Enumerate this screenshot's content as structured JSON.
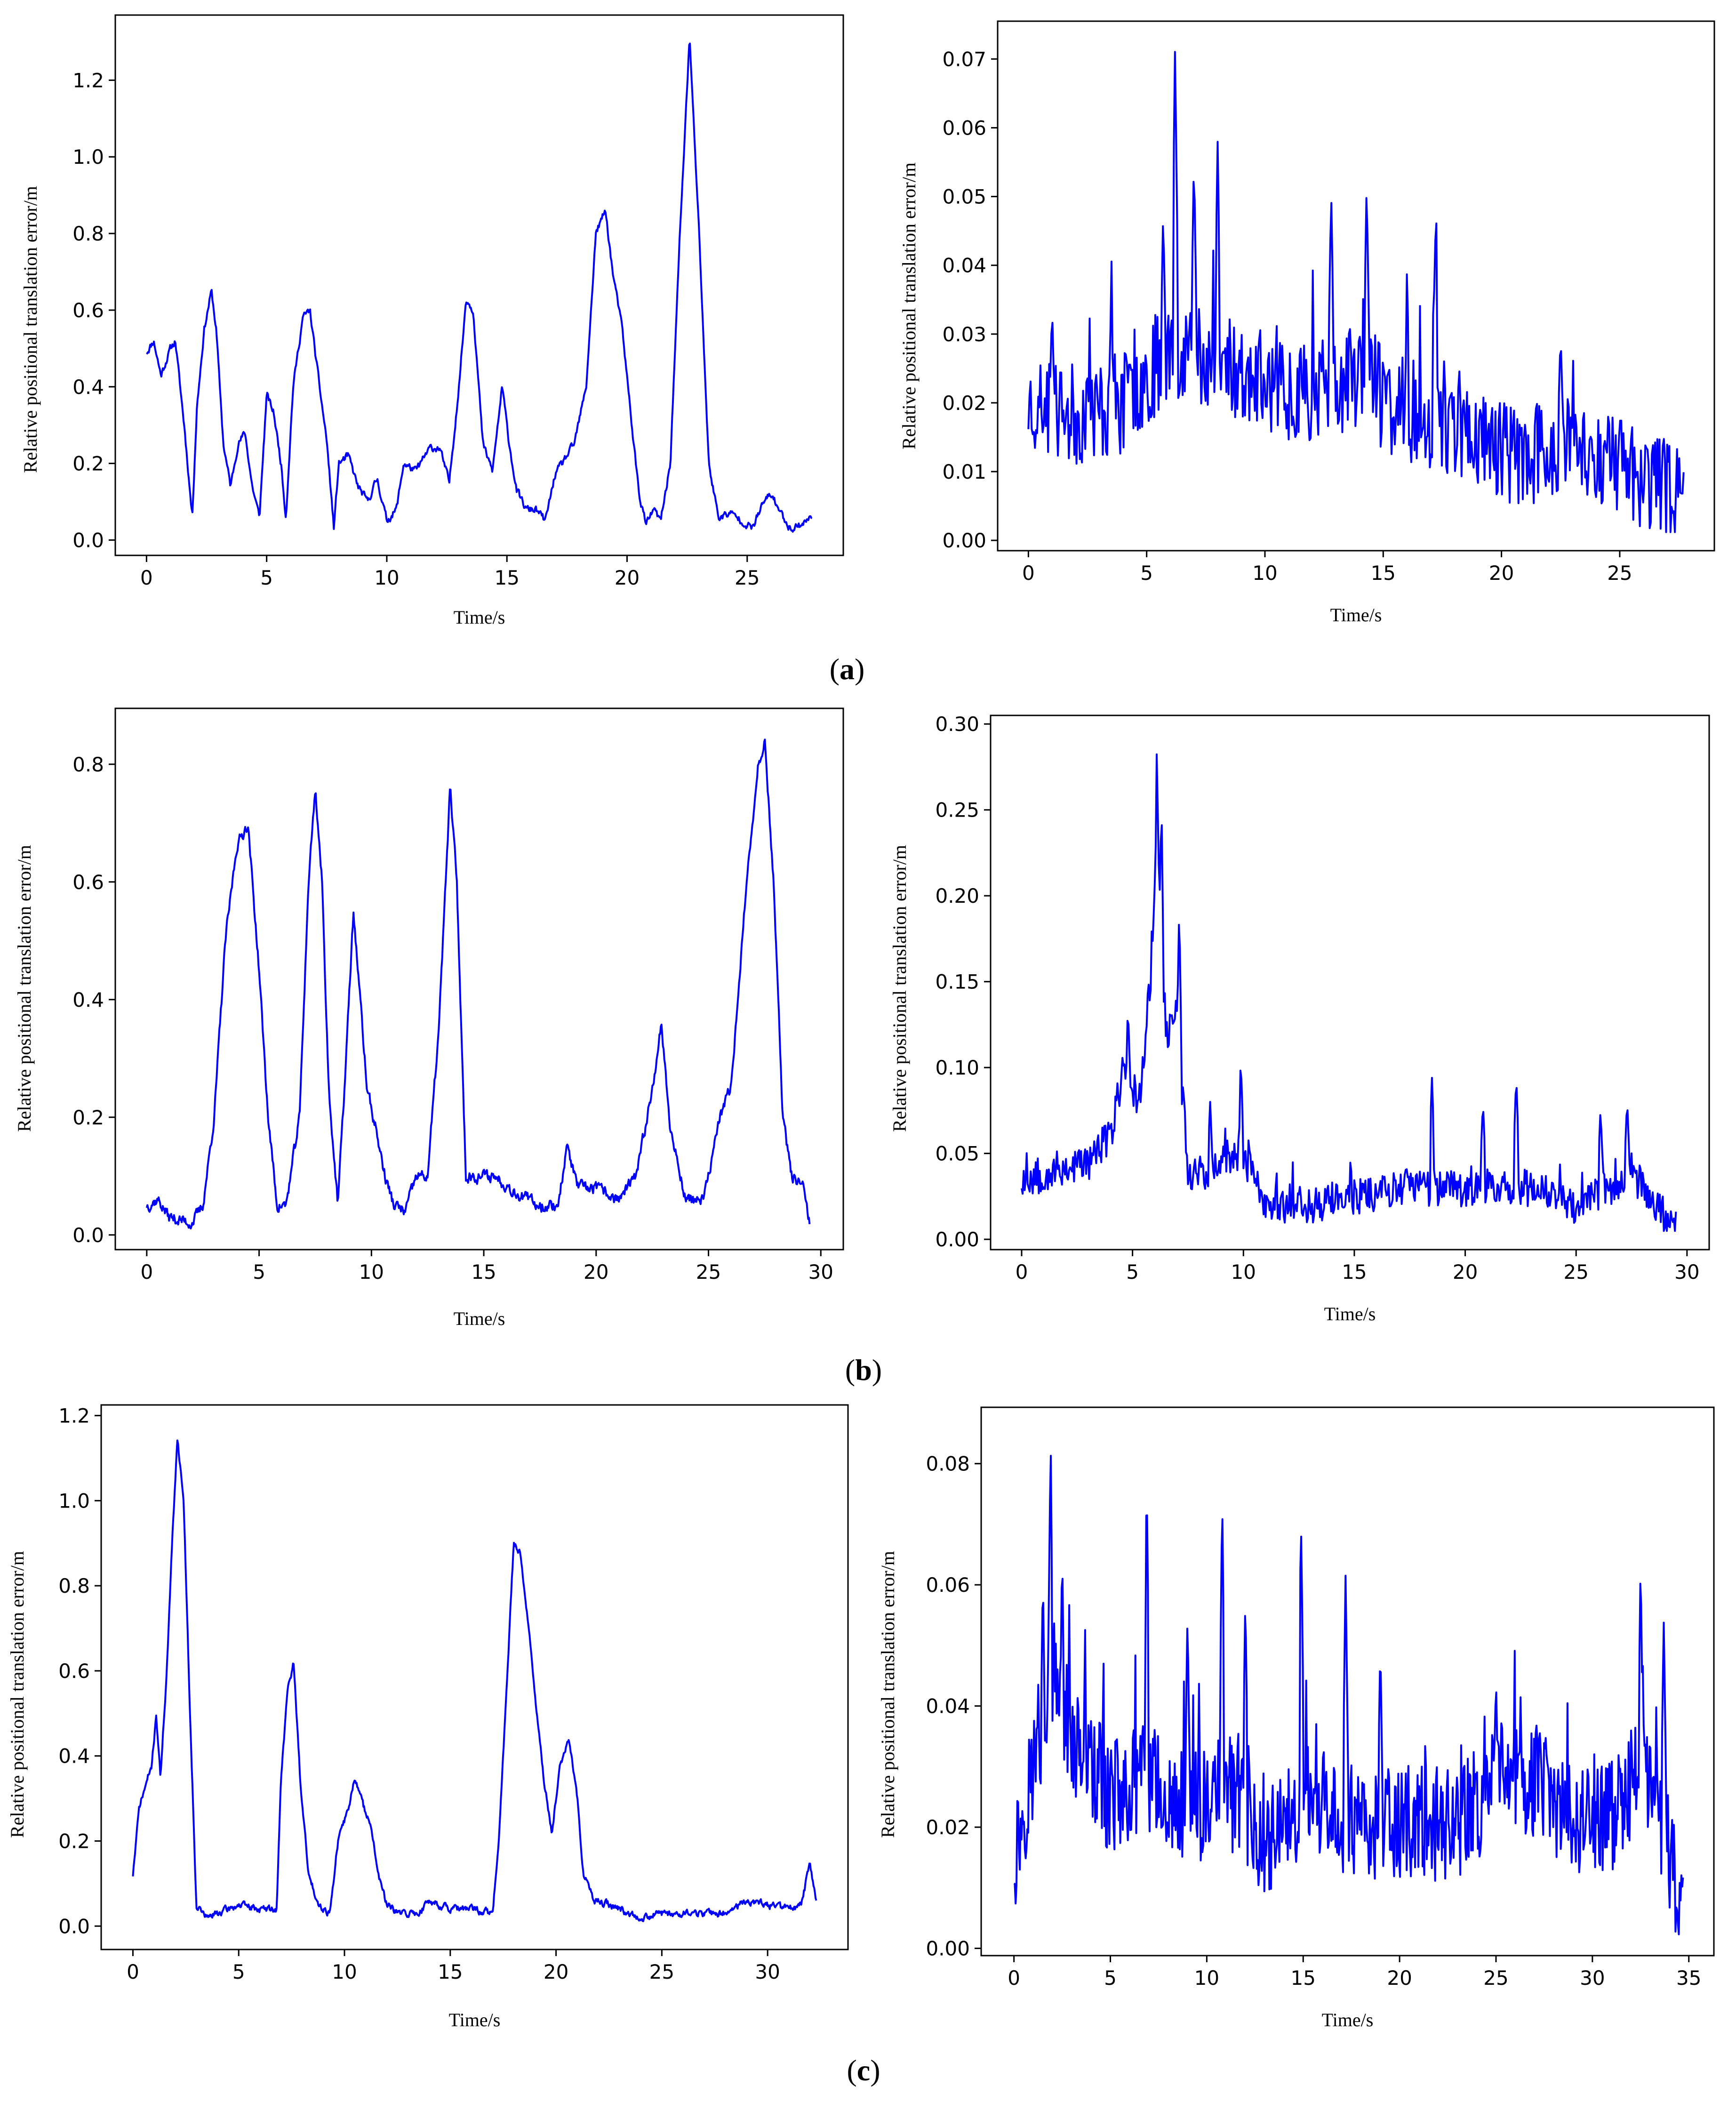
{
  "panels": [
    {
      "letter": "a"
    },
    {
      "letter": "b"
    },
    {
      "letter": "c"
    }
  ],
  "line_color": "#0000ff",
  "chart_data": [
    {
      "id": "a-left",
      "type": "line",
      "panel": "a",
      "position": "left",
      "xlabel": "Time/s",
      "ylabel": "Relative positional translation error/m",
      "xlim": [
        -1.3,
        29.0
      ],
      "ylim": [
        -0.04,
        1.37
      ],
      "xticks": [
        0,
        5,
        10,
        15,
        20,
        25
      ],
      "yticks": [
        0.0,
        0.2,
        0.4,
        0.6,
        0.8,
        1.0,
        1.2
      ],
      "x_range": [
        0,
        27.7
      ],
      "n_points": 900,
      "noise": 0.018,
      "seed": 11,
      "anchors": [
        [
          0,
          0.49
        ],
        [
          0.3,
          0.52
        ],
        [
          0.6,
          0.43
        ],
        [
          1.0,
          0.5
        ],
        [
          1.2,
          0.52
        ],
        [
          1.4,
          0.4
        ],
        [
          1.6,
          0.28
        ],
        [
          1.9,
          0.06
        ],
        [
          2.1,
          0.35
        ],
        [
          2.4,
          0.55
        ],
        [
          2.7,
          0.65
        ],
        [
          2.9,
          0.55
        ],
        [
          3.2,
          0.25
        ],
        [
          3.5,
          0.14
        ],
        [
          3.8,
          0.25
        ],
        [
          4.1,
          0.28
        ],
        [
          4.4,
          0.14
        ],
        [
          4.7,
          0.06
        ],
        [
          5.0,
          0.38
        ],
        [
          5.3,
          0.33
        ],
        [
          5.6,
          0.2
        ],
        [
          5.8,
          0.06
        ],
        [
          6.1,
          0.4
        ],
        [
          6.5,
          0.58
        ],
        [
          6.8,
          0.6
        ],
        [
          7.2,
          0.4
        ],
        [
          7.5,
          0.26
        ],
        [
          7.8,
          0.03
        ],
        [
          8.0,
          0.2
        ],
        [
          8.4,
          0.22
        ],
        [
          8.8,
          0.14
        ],
        [
          9.2,
          0.1
        ],
        [
          9.6,
          0.16
        ],
        [
          10.0,
          0.05
        ],
        [
          10.4,
          0.08
        ],
        [
          10.7,
          0.2
        ],
        [
          11.2,
          0.18
        ],
        [
          11.8,
          0.24
        ],
        [
          12.2,
          0.24
        ],
        [
          12.6,
          0.15
        ],
        [
          13.0,
          0.4
        ],
        [
          13.3,
          0.63
        ],
        [
          13.6,
          0.6
        ],
        [
          14.0,
          0.25
        ],
        [
          14.4,
          0.18
        ],
        [
          14.8,
          0.4
        ],
        [
          15.1,
          0.25
        ],
        [
          15.4,
          0.13
        ],
        [
          15.8,
          0.08
        ],
        [
          16.2,
          0.08
        ],
        [
          16.6,
          0.05
        ],
        [
          17.0,
          0.17
        ],
        [
          17.3,
          0.2
        ],
        [
          17.8,
          0.25
        ],
        [
          18.3,
          0.4
        ],
        [
          18.7,
          0.8
        ],
        [
          19.1,
          0.86
        ],
        [
          19.4,
          0.7
        ],
        [
          19.8,
          0.55
        ],
        [
          20.2,
          0.3
        ],
        [
          20.5,
          0.12
        ],
        [
          20.8,
          0.04
        ],
        [
          21.1,
          0.08
        ],
        [
          21.4,
          0.05
        ],
        [
          21.8,
          0.2
        ],
        [
          22.2,
          0.8
        ],
        [
          22.6,
          1.31
        ],
        [
          23.0,
          0.8
        ],
        [
          23.4,
          0.2
        ],
        [
          23.8,
          0.06
        ],
        [
          24.3,
          0.07
        ],
        [
          24.8,
          0.05
        ],
        [
          25.2,
          0.03
        ],
        [
          25.7,
          0.1
        ],
        [
          26.0,
          0.12
        ],
        [
          26.4,
          0.07
        ],
        [
          26.8,
          0.03
        ],
        [
          27.2,
          0.04
        ],
        [
          27.7,
          0.06
        ]
      ]
    },
    {
      "id": "a-right",
      "type": "line",
      "panel": "a",
      "position": "right",
      "xlabel": "Time/s",
      "ylabel": "Relative positional translation error/m",
      "xlim": [
        -1.3,
        29.0
      ],
      "ylim": [
        -0.0015,
        0.0755
      ],
      "xticks": [
        0,
        5,
        10,
        15,
        20,
        25
      ],
      "yticks": [
        0.0,
        0.01,
        0.02,
        0.03,
        0.04,
        0.05,
        0.06,
        0.07
      ],
      "x_range": [
        0,
        27.7
      ],
      "n_points": 600,
      "noise": 0.0075,
      "seed": 23,
      "spikes": [
        [
          6.2,
          0.072
        ],
        [
          7.0,
          0.056
        ],
        [
          8.0,
          0.058
        ],
        [
          5.7,
          0.048
        ],
        [
          14.3,
          0.052
        ],
        [
          12.8,
          0.051
        ],
        [
          17.2,
          0.044
        ],
        [
          16.0,
          0.032
        ],
        [
          22.5,
          0.03
        ],
        [
          1.0,
          0.034
        ],
        [
          3.5,
          0.035
        ]
      ],
      "anchors": [
        [
          0,
          0.02
        ],
        [
          2.0,
          0.018
        ],
        [
          4.0,
          0.02
        ],
        [
          6.0,
          0.028
        ],
        [
          7.0,
          0.028
        ],
        [
          9.0,
          0.024
        ],
        [
          11.0,
          0.022
        ],
        [
          13.0,
          0.022
        ],
        [
          14.3,
          0.025
        ],
        [
          15.0,
          0.02
        ],
        [
          17.0,
          0.018
        ],
        [
          19.0,
          0.015
        ],
        [
          21.0,
          0.012
        ],
        [
          23.0,
          0.014
        ],
        [
          25.0,
          0.011
        ],
        [
          27.7,
          0.006
        ]
      ]
    },
    {
      "id": "b-left",
      "type": "line",
      "panel": "b",
      "position": "left",
      "xlabel": "Time/s",
      "ylabel": "Relative positional translation error/m",
      "xlim": [
        -1.4,
        31.0
      ],
      "ylim": [
        -0.025,
        0.895
      ],
      "xticks": [
        0,
        5,
        10,
        15,
        20,
        25,
        30
      ],
      "yticks": [
        0.0,
        0.2,
        0.4,
        0.6,
        0.8
      ],
      "x_range": [
        0,
        29.5
      ],
      "n_points": 950,
      "noise": 0.018,
      "seed": 37,
      "anchors": [
        [
          0,
          0.05
        ],
        [
          0.5,
          0.06
        ],
        [
          1.0,
          0.03
        ],
        [
          2.0,
          0.02
        ],
        [
          2.5,
          0.05
        ],
        [
          3.0,
          0.2
        ],
        [
          3.5,
          0.5
        ],
        [
          4.0,
          0.66
        ],
        [
          4.5,
          0.7
        ],
        [
          5.0,
          0.45
        ],
        [
          5.4,
          0.2
        ],
        [
          5.8,
          0.05
        ],
        [
          6.2,
          0.05
        ],
        [
          6.8,
          0.2
        ],
        [
          7.2,
          0.6
        ],
        [
          7.5,
          0.76
        ],
        [
          7.8,
          0.6
        ],
        [
          8.1,
          0.25
        ],
        [
          8.5,
          0.05
        ],
        [
          8.8,
          0.25
        ],
        [
          9.2,
          0.55
        ],
        [
          9.5,
          0.4
        ],
        [
          9.8,
          0.25
        ],
        [
          10.2,
          0.18
        ],
        [
          10.6,
          0.1
        ],
        [
          11.0,
          0.05
        ],
        [
          11.5,
          0.04
        ],
        [
          12.0,
          0.1
        ],
        [
          12.5,
          0.1
        ],
        [
          13.0,
          0.35
        ],
        [
          13.5,
          0.76
        ],
        [
          13.8,
          0.6
        ],
        [
          14.2,
          0.1
        ],
        [
          14.8,
          0.1
        ],
        [
          15.5,
          0.1
        ],
        [
          16.5,
          0.07
        ],
        [
          17.5,
          0.05
        ],
        [
          18.3,
          0.05
        ],
        [
          18.7,
          0.15
        ],
        [
          19.2,
          0.08
        ],
        [
          20.0,
          0.08
        ],
        [
          21.0,
          0.06
        ],
        [
          21.8,
          0.1
        ],
        [
          22.5,
          0.25
        ],
        [
          22.9,
          0.36
        ],
        [
          23.3,
          0.18
        ],
        [
          24.0,
          0.06
        ],
        [
          24.8,
          0.06
        ],
        [
          25.5,
          0.2
        ],
        [
          26.0,
          0.25
        ],
        [
          26.6,
          0.55
        ],
        [
          27.2,
          0.8
        ],
        [
          27.5,
          0.84
        ],
        [
          27.9,
          0.6
        ],
        [
          28.3,
          0.2
        ],
        [
          28.7,
          0.1
        ],
        [
          29.2,
          0.08
        ],
        [
          29.5,
          0.02
        ]
      ]
    },
    {
      "id": "b-right",
      "type": "line",
      "panel": "b",
      "position": "right",
      "xlabel": "Time/s",
      "ylabel": "Relative positional translation error/m",
      "xlim": [
        -1.4,
        31.0
      ],
      "ylim": [
        -0.006,
        0.305
      ],
      "xticks": [
        0,
        5,
        10,
        15,
        20,
        25,
        30
      ],
      "yticks": [
        0.0,
        0.05,
        0.1,
        0.15,
        0.2,
        0.25,
        0.3
      ],
      "x_range": [
        0,
        29.5
      ],
      "n_points": 650,
      "noise": 0.011,
      "seed": 53,
      "spikes": [
        [
          6.1,
          0.293
        ],
        [
          6.3,
          0.26
        ],
        [
          7.1,
          0.19
        ],
        [
          4.8,
          0.135
        ],
        [
          9.9,
          0.097
        ],
        [
          18.5,
          0.094
        ],
        [
          22.3,
          0.095
        ],
        [
          27.3,
          0.081
        ],
        [
          26.1,
          0.075
        ],
        [
          20.8,
          0.08
        ],
        [
          8.5,
          0.08
        ]
      ],
      "anchors": [
        [
          0,
          0.035
        ],
        [
          1.5,
          0.04
        ],
        [
          3.0,
          0.045
        ],
        [
          4.0,
          0.06
        ],
        [
          4.6,
          0.1
        ],
        [
          5.3,
          0.08
        ],
        [
          5.8,
          0.15
        ],
        [
          6.1,
          0.24
        ],
        [
          6.5,
          0.12
        ],
        [
          7.0,
          0.13
        ],
        [
          7.5,
          0.04
        ],
        [
          8.5,
          0.04
        ],
        [
          10.0,
          0.05
        ],
        [
          11.0,
          0.02
        ],
        [
          12.0,
          0.02
        ],
        [
          13.0,
          0.02
        ],
        [
          15.0,
          0.025
        ],
        [
          17.0,
          0.03
        ],
        [
          19.0,
          0.03
        ],
        [
          21.0,
          0.03
        ],
        [
          23.0,
          0.03
        ],
        [
          25.0,
          0.02
        ],
        [
          26.5,
          0.03
        ],
        [
          27.5,
          0.04
        ],
        [
          28.5,
          0.02
        ],
        [
          29.5,
          0.008
        ]
      ]
    },
    {
      "id": "c-left",
      "type": "line",
      "panel": "c",
      "position": "left",
      "xlabel": "Time/s",
      "ylabel": "Relative positional translation error/m",
      "xlim": [
        -1.5,
        33.8
      ],
      "ylim": [
        -0.055,
        1.225
      ],
      "xticks": [
        0,
        5,
        10,
        15,
        20,
        25,
        30
      ],
      "yticks": [
        0.0,
        0.2,
        0.4,
        0.6,
        0.8,
        1.0,
        1.2
      ],
      "x_range": [
        0,
        32.3
      ],
      "n_points": 1000,
      "noise": 0.015,
      "seed": 71,
      "anchors": [
        [
          0,
          0.12
        ],
        [
          0.3,
          0.28
        ],
        [
          0.6,
          0.33
        ],
        [
          0.9,
          0.38
        ],
        [
          1.1,
          0.5
        ],
        [
          1.3,
          0.35
        ],
        [
          1.6,
          0.6
        ],
        [
          1.9,
          0.95
        ],
        [
          2.1,
          1.15
        ],
        [
          2.4,
          1.0
        ],
        [
          2.7,
          0.5
        ],
        [
          3.0,
          0.05
        ],
        [
          3.5,
          0.02
        ],
        [
          4.0,
          0.03
        ],
        [
          5.0,
          0.05
        ],
        [
          6.0,
          0.04
        ],
        [
          6.8,
          0.04
        ],
        [
          7.0,
          0.35
        ],
        [
          7.3,
          0.55
        ],
        [
          7.6,
          0.62
        ],
        [
          7.9,
          0.35
        ],
        [
          8.3,
          0.12
        ],
        [
          8.8,
          0.05
        ],
        [
          9.3,
          0.03
        ],
        [
          9.7,
          0.2
        ],
        [
          10.2,
          0.28
        ],
        [
          10.5,
          0.35
        ],
        [
          10.9,
          0.28
        ],
        [
          11.2,
          0.25
        ],
        [
          11.6,
          0.12
        ],
        [
          12.0,
          0.05
        ],
        [
          12.5,
          0.03
        ],
        [
          13.5,
          0.03
        ],
        [
          14.0,
          0.06
        ],
        [
          14.5,
          0.05
        ],
        [
          15.0,
          0.04
        ],
        [
          16.0,
          0.04
        ],
        [
          17.0,
          0.03
        ],
        [
          17.3,
          0.2
        ],
        [
          17.7,
          0.6
        ],
        [
          18.0,
          0.9
        ],
        [
          18.3,
          0.88
        ],
        [
          18.6,
          0.75
        ],
        [
          19.0,
          0.55
        ],
        [
          19.4,
          0.35
        ],
        [
          19.8,
          0.22
        ],
        [
          20.2,
          0.38
        ],
        [
          20.6,
          0.44
        ],
        [
          21.0,
          0.3
        ],
        [
          21.3,
          0.12
        ],
        [
          21.8,
          0.06
        ],
        [
          22.5,
          0.05
        ],
        [
          23.0,
          0.04
        ],
        [
          24.0,
          0.02
        ],
        [
          25.0,
          0.03
        ],
        [
          26.0,
          0.03
        ],
        [
          27.0,
          0.03
        ],
        [
          28.0,
          0.03
        ],
        [
          29.0,
          0.06
        ],
        [
          30.0,
          0.05
        ],
        [
          31.0,
          0.04
        ],
        [
          31.6,
          0.05
        ],
        [
          32.0,
          0.15
        ],
        [
          32.3,
          0.06
        ]
      ]
    },
    {
      "id": "c-right",
      "type": "line",
      "panel": "c",
      "position": "right",
      "xlabel": "Time/s",
      "ylabel": "Relative positional translation error/m",
      "xlim": [
        -1.7,
        36.3
      ],
      "ylim": [
        -0.0012,
        0.0893
      ],
      "xticks": [
        0,
        5,
        10,
        15,
        20,
        25,
        30,
        35
      ],
      "yticks": [
        0.0,
        0.02,
        0.04,
        0.06,
        0.08
      ],
      "x_range": [
        0,
        34.7
      ],
      "n_points": 800,
      "noise": 0.0095,
      "seed": 97,
      "spikes": [
        [
          1.9,
          0.085
        ],
        [
          1.5,
          0.062
        ],
        [
          2.5,
          0.066
        ],
        [
          6.9,
          0.073
        ],
        [
          10.8,
          0.075
        ],
        [
          14.9,
          0.069
        ],
        [
          17.2,
          0.062
        ],
        [
          32.5,
          0.064
        ],
        [
          9.0,
          0.055
        ],
        [
          19.0,
          0.05
        ],
        [
          25.0,
          0.045
        ],
        [
          12.0,
          0.058
        ],
        [
          33.7,
          0.054
        ]
      ],
      "anchors": [
        [
          0,
          0.015
        ],
        [
          1.0,
          0.03
        ],
        [
          2.0,
          0.045
        ],
        [
          3.0,
          0.035
        ],
        [
          5.0,
          0.025
        ],
        [
          7.0,
          0.028
        ],
        [
          9.0,
          0.022
        ],
        [
          11.0,
          0.026
        ],
        [
          13.0,
          0.018
        ],
        [
          15.0,
          0.024
        ],
        [
          17.0,
          0.022
        ],
        [
          19.0,
          0.02
        ],
        [
          21.0,
          0.021
        ],
        [
          23.0,
          0.02
        ],
        [
          25.0,
          0.028
        ],
        [
          27.0,
          0.028
        ],
        [
          29.0,
          0.02
        ],
        [
          31.0,
          0.022
        ],
        [
          32.5,
          0.03
        ],
        [
          33.5,
          0.02
        ],
        [
          34.7,
          0.008
        ]
      ]
    }
  ]
}
